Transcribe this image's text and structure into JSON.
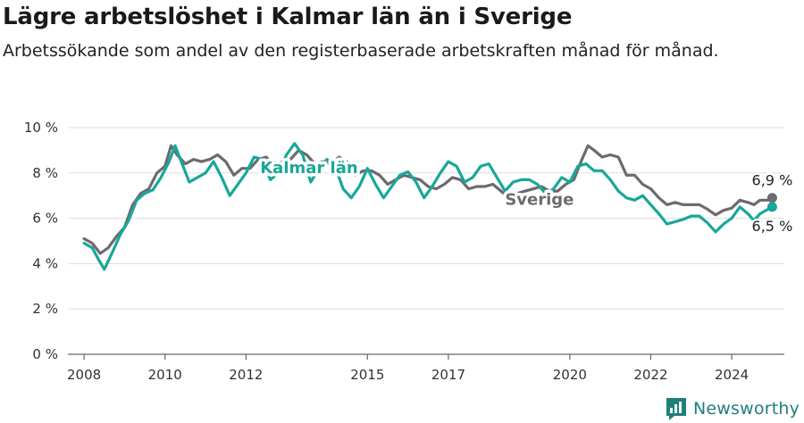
{
  "header": {
    "title": "Lägre arbetslöshet i Kalmar län än i Sverige",
    "subtitle": "Arbetssökande som andel av den registerbaserade arbetskraften månad för månad."
  },
  "brand": {
    "name": "Newsworthy",
    "icon": "newsworthy-logo-icon"
  },
  "colors": {
    "kalmar": "#19a79a",
    "sverige": "#6d6a6f",
    "grid": "#dddddd",
    "brand": "#1f7f7a"
  },
  "chart_data": {
    "type": "line",
    "title": "Lägre arbetslöshet i Kalmar län än i Sverige",
    "xlabel": "",
    "ylabel": "",
    "xlim": [
      2007.6,
      2025.3
    ],
    "ylim": [
      0,
      10
    ],
    "grid": true,
    "x_ticks": [
      {
        "value": 2008,
        "label": "2008"
      },
      {
        "value": 2010,
        "label": "2010"
      },
      {
        "value": 2012,
        "label": "2012"
      },
      {
        "value": 2015,
        "label": "2015"
      },
      {
        "value": 2017,
        "label": "2017"
      },
      {
        "value": 2020,
        "label": "2020"
      },
      {
        "value": 2022,
        "label": "2022"
      },
      {
        "value": 2024,
        "label": "2024"
      }
    ],
    "y_ticks": [
      {
        "value": 0,
        "label": "0 %"
      },
      {
        "value": 2,
        "label": "2 %"
      },
      {
        "value": 4,
        "label": "4 %"
      },
      {
        "value": 6,
        "label": "6 %"
      },
      {
        "value": 8,
        "label": "8 %"
      },
      {
        "value": 10,
        "label": "10 %"
      }
    ],
    "series": [
      {
        "name": "Sverige",
        "label": "Sverige",
        "end_label": "6,9 %",
        "points": [
          [
            2008.0,
            5.1
          ],
          [
            2008.2,
            4.9
          ],
          [
            2008.4,
            4.45
          ],
          [
            2008.6,
            4.7
          ],
          [
            2008.8,
            5.2
          ],
          [
            2009.0,
            5.6
          ],
          [
            2009.2,
            6.6
          ],
          [
            2009.4,
            7.1
          ],
          [
            2009.6,
            7.3
          ],
          [
            2009.8,
            8.0
          ],
          [
            2010.0,
            8.3
          ],
          [
            2010.15,
            9.2
          ],
          [
            2010.3,
            8.8
          ],
          [
            2010.5,
            8.4
          ],
          [
            2010.7,
            8.6
          ],
          [
            2010.9,
            8.5
          ],
          [
            2011.1,
            8.6
          ],
          [
            2011.3,
            8.8
          ],
          [
            2011.5,
            8.5
          ],
          [
            2011.7,
            7.9
          ],
          [
            2011.9,
            8.2
          ],
          [
            2012.1,
            8.2
          ],
          [
            2012.3,
            8.6
          ],
          [
            2012.5,
            8.7
          ],
          [
            2012.7,
            8.3
          ],
          [
            2012.9,
            8.5
          ],
          [
            2013.1,
            8.6
          ],
          [
            2013.3,
            9.0
          ],
          [
            2013.5,
            8.8
          ],
          [
            2013.7,
            8.4
          ],
          [
            2013.9,
            8.5
          ],
          [
            2014.1,
            8.4
          ],
          [
            2014.3,
            8.7
          ],
          [
            2014.5,
            8.5
          ],
          [
            2014.7,
            7.9
          ],
          [
            2014.9,
            8.1
          ],
          [
            2015.1,
            8.1
          ],
          [
            2015.3,
            7.9
          ],
          [
            2015.5,
            7.5
          ],
          [
            2015.7,
            7.7
          ],
          [
            2015.9,
            7.9
          ],
          [
            2016.1,
            7.8
          ],
          [
            2016.3,
            7.7
          ],
          [
            2016.5,
            7.4
          ],
          [
            2016.7,
            7.3
          ],
          [
            2016.9,
            7.5
          ],
          [
            2017.1,
            7.8
          ],
          [
            2017.3,
            7.7
          ],
          [
            2017.5,
            7.3
          ],
          [
            2017.7,
            7.4
          ],
          [
            2017.9,
            7.4
          ],
          [
            2018.1,
            7.5
          ],
          [
            2018.3,
            7.2
          ],
          [
            2018.5,
            6.9
          ],
          [
            2018.7,
            7.1
          ],
          [
            2018.9,
            7.2
          ],
          [
            2019.1,
            7.3
          ],
          [
            2019.3,
            7.4
          ],
          [
            2019.5,
            7.2
          ],
          [
            2019.7,
            7.2
          ],
          [
            2019.9,
            7.5
          ],
          [
            2020.1,
            7.7
          ],
          [
            2020.3,
            8.6
          ],
          [
            2020.45,
            9.2
          ],
          [
            2020.6,
            9.0
          ],
          [
            2020.8,
            8.7
          ],
          [
            2021.0,
            8.8
          ],
          [
            2021.2,
            8.7
          ],
          [
            2021.4,
            7.9
          ],
          [
            2021.6,
            7.9
          ],
          [
            2021.8,
            7.5
          ],
          [
            2022.0,
            7.3
          ],
          [
            2022.2,
            6.9
          ],
          [
            2022.4,
            6.6
          ],
          [
            2022.6,
            6.7
          ],
          [
            2022.8,
            6.6
          ],
          [
            2023.0,
            6.6
          ],
          [
            2023.2,
            6.6
          ],
          [
            2023.4,
            6.4
          ],
          [
            2023.6,
            6.15
          ],
          [
            2023.8,
            6.35
          ],
          [
            2024.0,
            6.45
          ],
          [
            2024.2,
            6.8
          ],
          [
            2024.4,
            6.7
          ],
          [
            2024.55,
            6.6
          ],
          [
            2024.7,
            6.8
          ],
          [
            2024.9,
            6.8
          ],
          [
            2025.0,
            6.9
          ]
        ]
      },
      {
        "name": "Kalmar län",
        "label": "Kalmar län",
        "end_label": "6,5 %",
        "points": [
          [
            2008.0,
            4.9
          ],
          [
            2008.2,
            4.7
          ],
          [
            2008.35,
            4.2
          ],
          [
            2008.5,
            3.75
          ],
          [
            2008.7,
            4.5
          ],
          [
            2008.9,
            5.3
          ],
          [
            2009.1,
            5.9
          ],
          [
            2009.3,
            6.8
          ],
          [
            2009.5,
            7.1
          ],
          [
            2009.7,
            7.25
          ],
          [
            2009.9,
            7.8
          ],
          [
            2010.1,
            8.5
          ],
          [
            2010.25,
            9.2
          ],
          [
            2010.4,
            8.5
          ],
          [
            2010.6,
            7.6
          ],
          [
            2010.8,
            7.8
          ],
          [
            2011.0,
            8.0
          ],
          [
            2011.2,
            8.5
          ],
          [
            2011.4,
            7.8
          ],
          [
            2011.6,
            7.0
          ],
          [
            2011.8,
            7.5
          ],
          [
            2012.0,
            8.0
          ],
          [
            2012.2,
            8.7
          ],
          [
            2012.4,
            8.6
          ],
          [
            2012.6,
            7.7
          ],
          [
            2012.8,
            8.0
          ],
          [
            2013.0,
            8.8
          ],
          [
            2013.2,
            9.3
          ],
          [
            2013.4,
            8.8
          ],
          [
            2013.6,
            7.6
          ],
          [
            2013.8,
            8.2
          ],
          [
            2014.0,
            8.6
          ],
          [
            2014.2,
            8.3
          ],
          [
            2014.4,
            7.3
          ],
          [
            2014.6,
            6.9
          ],
          [
            2014.8,
            7.4
          ],
          [
            2015.0,
            8.2
          ],
          [
            2015.2,
            7.5
          ],
          [
            2015.4,
            6.9
          ],
          [
            2015.6,
            7.4
          ],
          [
            2015.8,
            7.9
          ],
          [
            2016.0,
            8.05
          ],
          [
            2016.2,
            7.6
          ],
          [
            2016.4,
            6.9
          ],
          [
            2016.6,
            7.4
          ],
          [
            2016.8,
            8.0
          ],
          [
            2017.0,
            8.5
          ],
          [
            2017.2,
            8.3
          ],
          [
            2017.4,
            7.6
          ],
          [
            2017.6,
            7.8
          ],
          [
            2017.8,
            8.3
          ],
          [
            2018.0,
            8.4
          ],
          [
            2018.2,
            7.8
          ],
          [
            2018.4,
            7.2
          ],
          [
            2018.6,
            7.6
          ],
          [
            2018.8,
            7.7
          ],
          [
            2019.0,
            7.7
          ],
          [
            2019.2,
            7.5
          ],
          [
            2019.4,
            7.1
          ],
          [
            2019.6,
            7.3
          ],
          [
            2019.8,
            7.8
          ],
          [
            2020.0,
            7.6
          ],
          [
            2020.2,
            8.3
          ],
          [
            2020.4,
            8.4
          ],
          [
            2020.6,
            8.1
          ],
          [
            2020.8,
            8.1
          ],
          [
            2021.0,
            7.7
          ],
          [
            2021.2,
            7.2
          ],
          [
            2021.4,
            6.9
          ],
          [
            2021.6,
            6.8
          ],
          [
            2021.8,
            7.0
          ],
          [
            2022.0,
            6.6
          ],
          [
            2022.2,
            6.2
          ],
          [
            2022.4,
            5.75
          ],
          [
            2022.6,
            5.85
          ],
          [
            2022.8,
            5.95
          ],
          [
            2023.0,
            6.1
          ],
          [
            2023.2,
            6.1
          ],
          [
            2023.4,
            5.8
          ],
          [
            2023.6,
            5.4
          ],
          [
            2023.8,
            5.75
          ],
          [
            2024.0,
            6.0
          ],
          [
            2024.2,
            6.5
          ],
          [
            2024.4,
            6.2
          ],
          [
            2024.55,
            5.9
          ],
          [
            2024.7,
            6.2
          ],
          [
            2024.9,
            6.4
          ],
          [
            2025.0,
            6.5
          ]
        ]
      }
    ]
  }
}
